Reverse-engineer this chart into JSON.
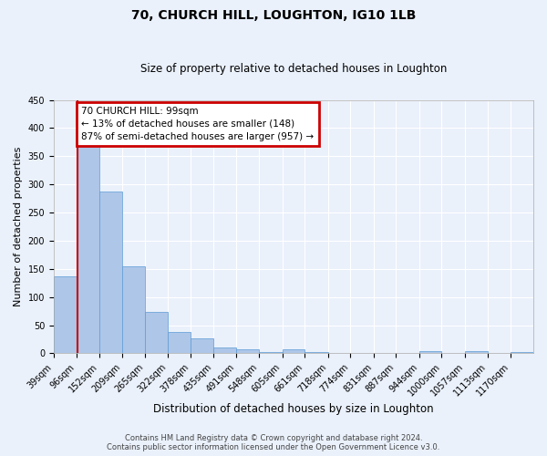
{
  "title": "70, CHURCH HILL, LOUGHTON, IG10 1LB",
  "subtitle": "Size of property relative to detached houses in Loughton",
  "xlabel": "Distribution of detached houses by size in Loughton",
  "ylabel": "Number of detached properties",
  "bin_labels": [
    "39sqm",
    "96sqm",
    "152sqm",
    "209sqm",
    "265sqm",
    "322sqm",
    "378sqm",
    "435sqm",
    "491sqm",
    "548sqm",
    "605sqm",
    "661sqm",
    "718sqm",
    "774sqm",
    "831sqm",
    "887sqm",
    "944sqm",
    "1000sqm",
    "1057sqm",
    "1113sqm",
    "1170sqm"
  ],
  "bar_values": [
    136,
    370,
    287,
    155,
    74,
    38,
    26,
    11,
    7,
    2,
    7,
    2,
    0,
    0,
    0,
    0,
    4,
    0,
    4,
    0,
    2
  ],
  "bar_color": "#aec6e8",
  "bar_edgecolor": "#5b9bd5",
  "annotation_text": "70 CHURCH HILL: 99sqm\n← 13% of detached houses are smaller (148)\n87% of semi-detached houses are larger (957) →",
  "annotation_box_color": "#ffffff",
  "annotation_box_edgecolor": "#cc0000",
  "vline_color": "#cc0000",
  "vline_x": 99,
  "ylim": [
    0,
    450
  ],
  "yticks": [
    0,
    50,
    100,
    150,
    200,
    250,
    300,
    350,
    400,
    450
  ],
  "background_color": "#eaf1fb",
  "fig_background_color": "#eaf1fb",
  "grid_color": "#ffffff",
  "footer_line1": "Contains HM Land Registry data © Crown copyright and database right 2024.",
  "footer_line2": "Contains public sector information licensed under the Open Government Licence v3.0."
}
